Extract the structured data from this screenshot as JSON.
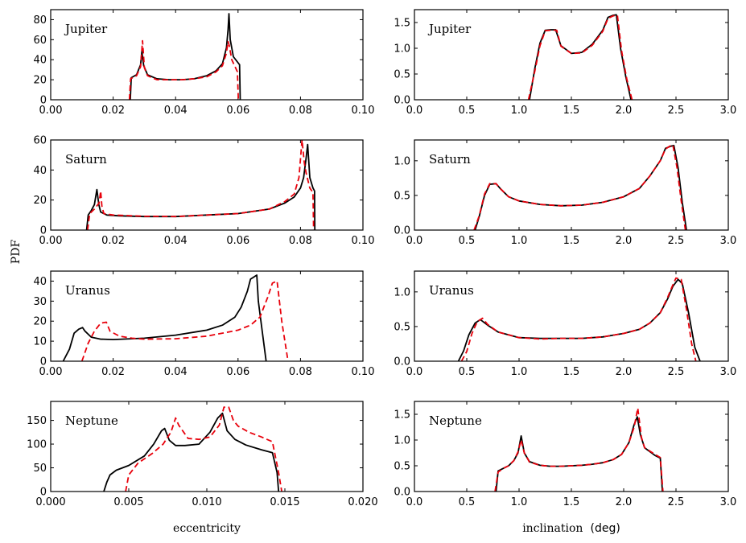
{
  "figure": {
    "ylabel": "PDF",
    "xlabel_left": "eccentricity",
    "xlabel_right_main": "inclination",
    "xlabel_right_unit": "(deg)"
  },
  "colors": {
    "solid": "#000000",
    "dashed": "#e8000b"
  },
  "chart_data": [
    {
      "id": "jupiter-ecc",
      "type": "line",
      "title": "Jupiter",
      "xlim": [
        0.0,
        0.1
      ],
      "ylim": [
        0,
        90
      ],
      "xticks": [
        "0.00",
        "0.02",
        "0.04",
        "0.06",
        "0.08",
        "0.10"
      ],
      "xtick_values": [
        0.0,
        0.02,
        0.04,
        0.06,
        0.08,
        0.1
      ],
      "yticks": [
        "0",
        "20",
        "40",
        "60",
        "80"
      ],
      "ytick_values": [
        0,
        20,
        40,
        60,
        80
      ],
      "series": [
        {
          "name": "solid",
          "x": [
            0.0255,
            0.0258,
            0.0275,
            0.0288,
            0.0292,
            0.0298,
            0.031,
            0.034,
            0.038,
            0.042,
            0.046,
            0.05,
            0.053,
            0.055,
            0.0563,
            0.0568,
            0.0571,
            0.0575,
            0.0585,
            0.06,
            0.0605,
            0.0607
          ],
          "y": [
            0,
            22,
            25,
            35,
            48,
            34,
            25,
            21,
            20,
            20,
            21,
            24,
            29,
            36,
            52,
            70,
            86,
            60,
            43,
            37,
            35,
            0
          ]
        },
        {
          "name": "dashed",
          "x": [
            0.0252,
            0.0256,
            0.0275,
            0.0288,
            0.0294,
            0.03,
            0.031,
            0.034,
            0.038,
            0.042,
            0.046,
            0.05,
            0.053,
            0.055,
            0.0562,
            0.0568,
            0.0572,
            0.058,
            0.0592,
            0.0598,
            0.0601
          ],
          "y": [
            0,
            21,
            24,
            33,
            59,
            32,
            24,
            20,
            20,
            20,
            21,
            23,
            28,
            34,
            46,
            58,
            54,
            40,
            32,
            28,
            0
          ]
        }
      ]
    },
    {
      "id": "jupiter-inc",
      "type": "line",
      "title": "Jupiter",
      "xlim": [
        0.0,
        3.0
      ],
      "ylim": [
        0,
        1.75
      ],
      "xticks": [
        "0.0",
        "0.5",
        "1.0",
        "1.5",
        "2.0",
        "2.5",
        "3.0"
      ],
      "xtick_values": [
        0.0,
        0.5,
        1.0,
        1.5,
        2.0,
        2.5,
        3.0
      ],
      "yticks": [
        "0.0",
        "0.5",
        "1.0",
        "1.5"
      ],
      "ytick_values": [
        0.0,
        0.5,
        1.0,
        1.5
      ],
      "series": [
        {
          "name": "solid",
          "x": [
            1.1,
            1.15,
            1.2,
            1.25,
            1.3,
            1.35,
            1.4,
            1.5,
            1.6,
            1.7,
            1.8,
            1.85,
            1.9,
            1.93,
            1.97,
            2.02,
            2.07
          ],
          "y": [
            0,
            0.6,
            1.1,
            1.35,
            1.36,
            1.36,
            1.05,
            0.9,
            0.92,
            1.08,
            1.35,
            1.6,
            1.64,
            1.65,
            1.0,
            0.45,
            0.0
          ]
        },
        {
          "name": "dashed",
          "x": [
            1.09,
            1.15,
            1.2,
            1.25,
            1.3,
            1.36,
            1.4,
            1.5,
            1.6,
            1.7,
            1.8,
            1.85,
            1.9,
            1.94,
            1.98,
            2.03,
            2.08
          ],
          "y": [
            0,
            0.55,
            1.05,
            1.34,
            1.35,
            1.35,
            1.04,
            0.9,
            0.91,
            1.06,
            1.33,
            1.58,
            1.63,
            1.64,
            0.95,
            0.4,
            0.0
          ]
        }
      ]
    },
    {
      "id": "saturn-ecc",
      "type": "line",
      "title": "Saturn",
      "xlim": [
        0.0,
        0.1
      ],
      "ylim": [
        0,
        60
      ],
      "xticks": [
        "0.00",
        "0.02",
        "0.04",
        "0.06",
        "0.08",
        "0.10"
      ],
      "xtick_values": [
        0.0,
        0.02,
        0.04,
        0.06,
        0.08,
        0.1
      ],
      "yticks": [
        "0",
        "20",
        "40",
        "60"
      ],
      "ytick_values": [
        0,
        20,
        40,
        60
      ],
      "series": [
        {
          "name": "solid",
          "x": [
            0.0115,
            0.012,
            0.013,
            0.014,
            0.0148,
            0.0154,
            0.016,
            0.018,
            0.022,
            0.03,
            0.04,
            0.05,
            0.06,
            0.07,
            0.075,
            0.078,
            0.08,
            0.081,
            0.0818,
            0.0823,
            0.083,
            0.084,
            0.0845,
            0.0846
          ],
          "y": [
            0,
            10,
            13,
            17,
            27,
            17,
            12,
            10,
            9.5,
            9,
            9,
            10,
            11,
            14,
            18,
            22,
            28,
            35,
            48,
            57,
            35,
            28,
            26,
            0
          ]
        },
        {
          "name": "dashed",
          "x": [
            0.0118,
            0.0125,
            0.014,
            0.0155,
            0.016,
            0.0164,
            0.017,
            0.02,
            0.03,
            0.04,
            0.05,
            0.06,
            0.07,
            0.075,
            0.078,
            0.0795,
            0.0805,
            0.0812,
            0.0818,
            0.083,
            0.084,
            0.0842
          ],
          "y": [
            0,
            11,
            14,
            18,
            26,
            16,
            11,
            10,
            9.2,
            9,
            10,
            11,
            14,
            19,
            24,
            35,
            60,
            45,
            38,
            28,
            25,
            0
          ]
        }
      ]
    },
    {
      "id": "saturn-inc",
      "type": "line",
      "title": "Saturn",
      "xlim": [
        0.0,
        3.0
      ],
      "ylim": [
        0,
        1.3
      ],
      "xticks": [
        "0.0",
        "0.5",
        "1.0",
        "1.5",
        "2.0",
        "2.5",
        "3.0"
      ],
      "xtick_values": [
        0.0,
        0.5,
        1.0,
        1.5,
        2.0,
        2.5,
        3.0
      ],
      "yticks": [
        "0.0",
        "0.5",
        "1.0"
      ],
      "ytick_values": [
        0.0,
        0.5,
        1.0
      ],
      "series": [
        {
          "name": "solid",
          "x": [
            0.58,
            0.62,
            0.67,
            0.72,
            0.78,
            0.82,
            0.9,
            1.0,
            1.2,
            1.4,
            1.6,
            1.8,
            2.0,
            2.15,
            2.25,
            2.35,
            2.4,
            2.45,
            2.48,
            2.52,
            2.56,
            2.6
          ],
          "y": [
            0,
            0.2,
            0.5,
            0.66,
            0.67,
            0.6,
            0.48,
            0.42,
            0.37,
            0.35,
            0.36,
            0.4,
            0.48,
            0.6,
            0.78,
            1.0,
            1.18,
            1.21,
            1.22,
            0.9,
            0.4,
            0.0
          ]
        },
        {
          "name": "dashed",
          "x": [
            0.57,
            0.62,
            0.67,
            0.72,
            0.78,
            0.82,
            0.9,
            1.0,
            1.2,
            1.4,
            1.6,
            1.8,
            2.0,
            2.15,
            2.25,
            2.35,
            2.4,
            2.44,
            2.47,
            2.51,
            2.55,
            2.59
          ],
          "y": [
            0,
            0.21,
            0.52,
            0.67,
            0.67,
            0.6,
            0.48,
            0.42,
            0.37,
            0.35,
            0.36,
            0.4,
            0.48,
            0.6,
            0.78,
            1.0,
            1.17,
            1.21,
            1.23,
            0.9,
            0.42,
            0.0
          ]
        }
      ]
    },
    {
      "id": "uranus-ecc",
      "type": "line",
      "title": "Uranus",
      "xlim": [
        0.0,
        0.1
      ],
      "ylim": [
        0,
        45
      ],
      "xticks": [
        "0.00",
        "0.02",
        "0.04",
        "0.06",
        "0.08",
        "0.10"
      ],
      "xtick_values": [
        0.0,
        0.02,
        0.04,
        0.06,
        0.08,
        0.1
      ],
      "yticks": [
        "0",
        "10",
        "20",
        "30",
        "40"
      ],
      "ytick_values": [
        0,
        10,
        20,
        30,
        40
      ],
      "series": [
        {
          "name": "solid",
          "x": [
            0.004,
            0.006,
            0.0075,
            0.009,
            0.0102,
            0.011,
            0.013,
            0.016,
            0.02,
            0.03,
            0.04,
            0.05,
            0.055,
            0.059,
            0.061,
            0.063,
            0.064,
            0.066,
            0.0665,
            0.068,
            0.069
          ],
          "y": [
            0,
            6,
            14,
            16,
            16.8,
            15,
            12,
            11,
            10.8,
            11.5,
            13,
            15.5,
            18,
            22,
            27,
            35,
            41,
            43,
            30,
            12,
            0
          ]
        },
        {
          "name": "dashed",
          "x": [
            0.01,
            0.012,
            0.014,
            0.016,
            0.0178,
            0.019,
            0.022,
            0.026,
            0.03,
            0.04,
            0.05,
            0.06,
            0.064,
            0.067,
            0.0695,
            0.071,
            0.0725,
            0.074,
            0.076
          ],
          "y": [
            0,
            9,
            15,
            19,
            19.5,
            15,
            12.5,
            11.5,
            11,
            11.2,
            12.5,
            15.5,
            18,
            22,
            32,
            39,
            40,
            20,
            0
          ]
        }
      ]
    },
    {
      "id": "uranus-inc",
      "type": "line",
      "title": "Uranus",
      "xlim": [
        0.0,
        3.0
      ],
      "ylim": [
        0,
        1.3
      ],
      "xticks": [
        "0.0",
        "0.5",
        "1.0",
        "1.5",
        "2.0",
        "2.5",
        "3.0"
      ],
      "xtick_values": [
        0.0,
        0.5,
        1.0,
        1.5,
        2.0,
        2.5,
        3.0
      ],
      "yticks": [
        "0.0",
        "0.5",
        "1.0"
      ],
      "ytick_values": [
        0.0,
        0.5,
        1.0
      ],
      "series": [
        {
          "name": "solid",
          "x": [
            0.42,
            0.47,
            0.52,
            0.58,
            0.63,
            0.7,
            0.8,
            1.0,
            1.2,
            1.4,
            1.6,
            1.8,
            2.0,
            2.15,
            2.25,
            2.35,
            2.42,
            2.47,
            2.52,
            2.56,
            2.62,
            2.68,
            2.73
          ],
          "y": [
            0,
            0.15,
            0.38,
            0.55,
            0.6,
            0.52,
            0.42,
            0.34,
            0.33,
            0.33,
            0.33,
            0.35,
            0.4,
            0.46,
            0.55,
            0.7,
            0.9,
            1.08,
            1.18,
            1.12,
            0.7,
            0.2,
            0.0
          ]
        },
        {
          "name": "dashed",
          "x": [
            0.45,
            0.5,
            0.55,
            0.6,
            0.65,
            0.7,
            0.8,
            1.0,
            1.2,
            1.4,
            1.6,
            1.8,
            2.0,
            2.15,
            2.25,
            2.35,
            2.42,
            2.47,
            2.5,
            2.55,
            2.6,
            2.65,
            2.69
          ],
          "y": [
            0,
            0.14,
            0.4,
            0.57,
            0.62,
            0.53,
            0.42,
            0.34,
            0.32,
            0.33,
            0.33,
            0.35,
            0.4,
            0.46,
            0.55,
            0.7,
            0.92,
            1.1,
            1.2,
            1.18,
            0.75,
            0.25,
            0.0
          ]
        }
      ]
    },
    {
      "id": "neptune-ecc",
      "type": "line",
      "title": "Neptune",
      "xlim": [
        0.0,
        0.02
      ],
      "ylim": [
        0,
        190
      ],
      "xticks": [
        "0.000",
        "0.005",
        "0.010",
        "0.015",
        "0.020"
      ],
      "xtick_values": [
        0.0,
        0.005,
        0.01,
        0.015,
        0.02
      ],
      "yticks": [
        "0",
        "50",
        "100",
        "150"
      ],
      "ytick_values": [
        0,
        50,
        100,
        150
      ],
      "series": [
        {
          "name": "solid",
          "x": [
            0.0034,
            0.0036,
            0.0038,
            0.0042,
            0.005,
            0.006,
            0.0066,
            0.0071,
            0.0073,
            0.0076,
            0.008,
            0.0086,
            0.0095,
            0.0102,
            0.0107,
            0.011,
            0.0113,
            0.0118,
            0.0125,
            0.0135,
            0.0142,
            0.0145,
            0.0146
          ],
          "y": [
            0,
            20,
            35,
            45,
            55,
            75,
            100,
            128,
            133,
            108,
            97,
            97,
            100,
            125,
            155,
            165,
            128,
            110,
            98,
            88,
            82,
            40,
            0
          ]
        },
        {
          "name": "dashed",
          "x": [
            0.0048,
            0.005,
            0.0056,
            0.0065,
            0.0072,
            0.0077,
            0.008,
            0.0082,
            0.0088,
            0.0095,
            0.0102,
            0.0108,
            0.0111,
            0.0114,
            0.0117,
            0.012,
            0.0127,
            0.0135,
            0.0142,
            0.0146,
            0.0148
          ],
          "y": [
            0,
            35,
            60,
            80,
            100,
            125,
            155,
            140,
            112,
            110,
            115,
            140,
            178,
            178,
            150,
            138,
            125,
            115,
            105,
            40,
            0
          ]
        }
      ]
    },
    {
      "id": "neptune-inc",
      "type": "line",
      "title": "Neptune",
      "xlim": [
        0.0,
        3.0
      ],
      "ylim": [
        0,
        1.75
      ],
      "xticks": [
        "0.0",
        "0.5",
        "1.0",
        "1.5",
        "2.0",
        "2.5",
        "3.0"
      ],
      "xtick_values": [
        0.0,
        0.5,
        1.0,
        1.5,
        2.0,
        2.5,
        3.0
      ],
      "yticks": [
        "0.0",
        "0.5",
        "1.0",
        "1.5"
      ],
      "ytick_values": [
        0.0,
        0.5,
        1.0,
        1.5
      ],
      "series": [
        {
          "name": "solid",
          "x": [
            0.78,
            0.8,
            0.85,
            0.9,
            0.95,
            0.99,
            1.02,
            1.05,
            1.1,
            1.2,
            1.3,
            1.4,
            1.5,
            1.6,
            1.7,
            1.8,
            1.9,
            1.98,
            2.05,
            2.1,
            2.13,
            2.16,
            2.2,
            2.3,
            2.35,
            2.37
          ],
          "y": [
            0,
            0.4,
            0.45,
            0.5,
            0.6,
            0.75,
            1.08,
            0.75,
            0.58,
            0.51,
            0.49,
            0.49,
            0.5,
            0.51,
            0.53,
            0.56,
            0.62,
            0.72,
            0.95,
            1.3,
            1.45,
            1.1,
            0.85,
            0.7,
            0.65,
            0.0
          ]
        },
        {
          "name": "dashed",
          "x": [
            0.77,
            0.8,
            0.85,
            0.9,
            0.95,
            0.99,
            1.02,
            1.05,
            1.1,
            1.2,
            1.3,
            1.4,
            1.5,
            1.6,
            1.7,
            1.8,
            1.9,
            1.98,
            2.05,
            2.1,
            2.135,
            2.17,
            2.2,
            2.3,
            2.35,
            2.375
          ],
          "y": [
            0,
            0.38,
            0.45,
            0.5,
            0.6,
            0.77,
            1.0,
            0.75,
            0.57,
            0.51,
            0.49,
            0.49,
            0.5,
            0.51,
            0.53,
            0.56,
            0.62,
            0.72,
            0.95,
            1.25,
            1.62,
            1.05,
            0.85,
            0.72,
            0.66,
            0.0
          ]
        }
      ]
    }
  ]
}
